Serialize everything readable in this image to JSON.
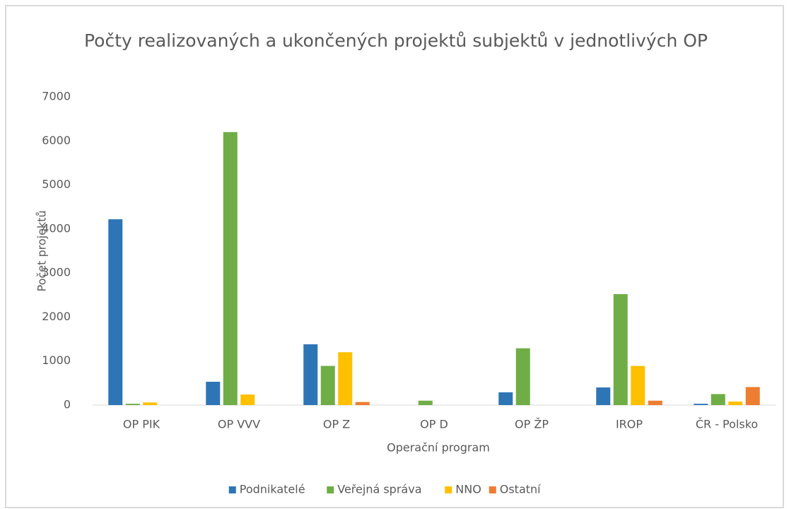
{
  "chart_data": {
    "type": "bar",
    "title": "Počty realizovaných a ukončených projektů subjektů v jednotlivých OP",
    "xlabel": "Operační program",
    "ylabel": "Počet projektů",
    "categories": [
      "OP PIK",
      "OP VVV",
      "OP Z",
      "OP D",
      "OP ŽP",
      "IROP",
      "ČR - Polsko"
    ],
    "series": [
      {
        "name": "Podnikatelé",
        "color": "#2e75b6",
        "values": [
          4220,
          530,
          1380,
          0,
          290,
          400,
          30
        ]
      },
      {
        "name": "Veřejná správa",
        "color": "#70ad47",
        "values": [
          30,
          6200,
          890,
          100,
          1290,
          2520,
          250
        ]
      },
      {
        "name": "NNO",
        "color": "#ffc000",
        "values": [
          60,
          240,
          1200,
          0,
          0,
          890,
          80
        ]
      },
      {
        "name": "Ostatní",
        "color": "#ed7d31",
        "values": [
          0,
          0,
          70,
          0,
          0,
          100,
          410
        ]
      }
    ],
    "ylim": [
      0,
      7000
    ],
    "yticks": [
      0,
      1000,
      2000,
      3000,
      4000,
      5000,
      6000,
      7000
    ],
    "grid": false,
    "legend": "bottom"
  }
}
